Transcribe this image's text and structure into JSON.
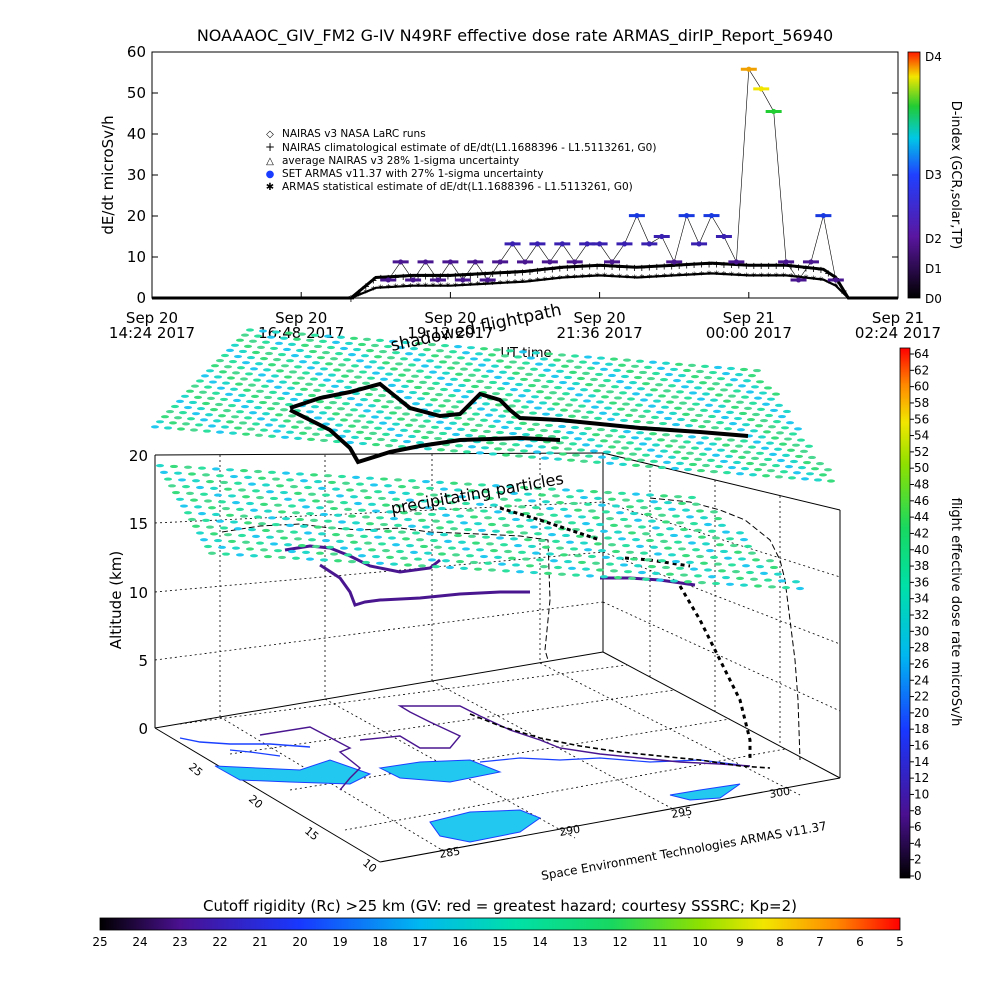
{
  "title": "NOAAAOC_GIV_FM2 G-IV    N49RF   effective dose rate ARMAS_dirIP_Report_56940",
  "chart_data": [
    {
      "type": "scatter",
      "ylabel": "dE/dt microSv/h",
      "xlabel": "UT time",
      "ylim": [
        0,
        60
      ],
      "yticks": [
        "0",
        "10",
        "20",
        "30",
        "40",
        "50",
        "60"
      ],
      "xticks": [
        {
          "l1": "Sep 20",
          "l2": "14:24 2017"
        },
        {
          "l1": "Sep 20",
          "l2": "16:48 2017"
        },
        {
          "l1": "Sep 20",
          "l2": "19:12 2017"
        },
        {
          "l1": "Sep 20",
          "l2": "21:36 2017"
        },
        {
          "l1": "Sep 21",
          "l2": "00:00 2017"
        },
        {
          "l1": "Sep 21",
          "l2": "02:24 2017"
        }
      ],
      "legend_placement": "upper-left",
      "legend": [
        {
          "symbol": "◇",
          "label": "NAIRAS v3 NASA LaRC runs"
        },
        {
          "symbol": "+",
          "label": "NAIRAS climatological estimate of dE/dt(L1.1688396 - L1.5113261, G0)"
        },
        {
          "symbol": "△",
          "label": "average NAIRAS v3 28% 1-sigma uncertainty"
        },
        {
          "symbol": "●",
          "label": "SET ARMAS v11.37 with 27% 1-sigma uncertainty"
        },
        {
          "symbol": "✱",
          "label": "ARMAS statistical estimate of dE/dt(L1.1688396 - L1.5113261, G0)"
        }
      ],
      "series": [
        {
          "name": "SET ARMAS v11.37 with 27% 1-sigma uncertainty",
          "x": [
            18.2,
            18.4,
            18.6,
            18.8,
            19.0,
            19.2,
            19.4,
            19.6,
            19.8,
            20.0,
            20.2,
            20.4,
            20.6,
            20.8,
            21.0,
            21.2,
            21.4,
            21.6,
            21.8,
            22.0,
            22.2,
            22.4,
            22.6,
            22.8,
            23.0,
            23.2,
            23.4,
            23.6,
            23.8,
            24.0,
            24.2,
            24.4,
            24.6,
            24.8,
            25.0,
            25.2,
            25.4
          ],
          "y": [
            4.4,
            8.8,
            4.4,
            8.8,
            4.4,
            8.8,
            4.4,
            8.8,
            4.4,
            8.8,
            13.2,
            8.8,
            13.2,
            8.8,
            13.2,
            8.8,
            13.2,
            13.2,
            8.8,
            13.2,
            20.1,
            13.2,
            15.0,
            8.8,
            20.1,
            13.2,
            20.1,
            15.0,
            8.8,
            55.8,
            51.0,
            45.5,
            8.8,
            4.4,
            8.8,
            20.1,
            4.4
          ]
        },
        {
          "name": "NAIRAS climatological estimate of dE/dt(L1.1688396 - L1.5113261, G0)",
          "x": [
            14.4,
            16.8,
            17.6,
            18.0,
            18.6,
            19.2,
            19.8,
            20.4,
            21.0,
            21.6,
            22.2,
            22.8,
            23.4,
            24.0,
            24.6,
            25.2,
            25.4,
            25.6,
            26.4
          ],
          "y": [
            0,
            0,
            0,
            5,
            5.5,
            5.5,
            6,
            6.5,
            7.5,
            8,
            7.5,
            8,
            8.5,
            8,
            8,
            7,
            5,
            0,
            0
          ]
        },
        {
          "name": "ARMAS statistical estimate of dE/dt(L1.1688396 - L1.5113261, G0)",
          "x": [
            14.4,
            16.8,
            17.6,
            18.0,
            18.6,
            19.2,
            19.8,
            20.4,
            21.0,
            21.6,
            22.2,
            22.8,
            23.4,
            24.0,
            24.6,
            25.2,
            25.4,
            25.6,
            26.4
          ],
          "y": [
            0,
            0,
            0,
            2.5,
            3,
            3,
            3.5,
            4,
            5,
            5.5,
            5,
            5.5,
            6,
            5.5,
            5.5,
            4.5,
            3,
            0,
            0
          ]
        }
      ],
      "colorbar": {
        "label": "D-index (GCR,solar,TP)",
        "ticks": [
          "D0",
          "D1",
          "D2",
          "D3",
          "D4"
        ]
      }
    },
    {
      "type": "scatter",
      "ylabel": "Altitude (km)",
      "zticks": [
        "0",
        "5",
        "10",
        "15",
        "20"
      ],
      "lat_ticks": [
        "25",
        "20",
        "15",
        "10"
      ],
      "lon_ticks": [
        "285",
        "290",
        "295",
        "300"
      ],
      "annotations": [
        "shadowed flightpath",
        "precipitating particles",
        "Space Environment Technologies ARMAS v11.37"
      ],
      "colorbar": {
        "label": "flight effective dose rate microSv/h",
        "ticks": [
          "0",
          "2",
          "4",
          "6",
          "8",
          "10",
          "12",
          "14",
          "16",
          "18",
          "20",
          "22",
          "24",
          "26",
          "28",
          "30",
          "32",
          "34",
          "36",
          "38",
          "40",
          "42",
          "44",
          "46",
          "48",
          "50",
          "52",
          "54",
          "56",
          "58",
          "60",
          "62",
          "64"
        ]
      }
    }
  ],
  "bottom_bar": {
    "label": "Cutoff rigidity (Rc) >25 km (GV: red = greatest hazard; courtesy SSSRC; Kp=2)",
    "ticks": [
      "25",
      "24",
      "23",
      "22",
      "21",
      "20",
      "19",
      "18",
      "17",
      "16",
      "15",
      "14",
      "13",
      "12",
      "11",
      "10",
      "9",
      "8",
      "7",
      "6",
      "5"
    ]
  }
}
